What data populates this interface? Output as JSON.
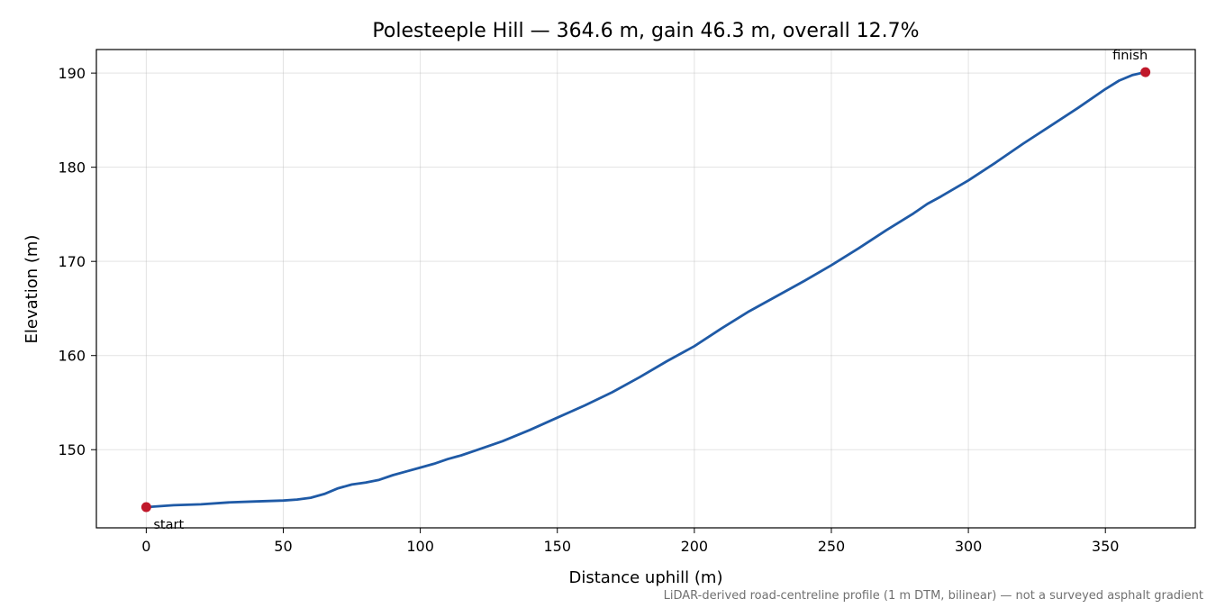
{
  "chart_data": {
    "type": "line",
    "title": "Polesteeple Hill — 364.6 m, gain 46.3 m, overall 12.7%",
    "xlabel": "Distance uphill (m)",
    "ylabel": "Elevation (m)",
    "xlim": [
      -18.2,
      382.8
    ],
    "ylim": [
      141.7,
      192.5
    ],
    "xticks": [
      0,
      50,
      100,
      150,
      200,
      250,
      300,
      350
    ],
    "yticks": [
      150,
      160,
      170,
      180,
      190
    ],
    "grid": true,
    "series": [
      {
        "color": "#1f5aa6",
        "x": [
          0,
          10,
          20,
          30,
          40,
          50,
          55,
          60,
          65,
          70,
          75,
          80,
          85,
          90,
          95,
          100,
          105,
          110,
          115,
          120,
          125,
          130,
          140,
          150,
          160,
          170,
          180,
          190,
          200,
          210,
          220,
          230,
          240,
          250,
          260,
          270,
          280,
          285,
          290,
          300,
          310,
          320,
          330,
          340,
          350,
          355,
          360,
          364.6
        ],
        "y": [
          143.9,
          144.1,
          144.2,
          144.4,
          144.5,
          144.6,
          144.7,
          144.9,
          145.3,
          145.9,
          146.3,
          146.5,
          146.8,
          147.3,
          147.7,
          148.1,
          148.5,
          149.0,
          149.4,
          149.9,
          150.4,
          150.9,
          152.1,
          153.4,
          154.7,
          156.1,
          157.7,
          159.4,
          161.0,
          162.9,
          164.7,
          166.3,
          167.9,
          169.6,
          171.4,
          173.3,
          175.1,
          176.1,
          176.9,
          178.6,
          180.5,
          182.5,
          184.4,
          186.3,
          188.3,
          189.2,
          189.8,
          190.1
        ]
      }
    ],
    "annotations": [
      {
        "text": "start",
        "x": 0,
        "y": 143.9,
        "marker_color": "#c0182a"
      },
      {
        "text": "finish",
        "x": 364.6,
        "y": 190.1,
        "marker_color": "#c0182a"
      }
    ],
    "footnote": "LiDAR-derived road-centreline profile (1 m DTM, bilinear) — not a surveyed asphalt gradient"
  }
}
